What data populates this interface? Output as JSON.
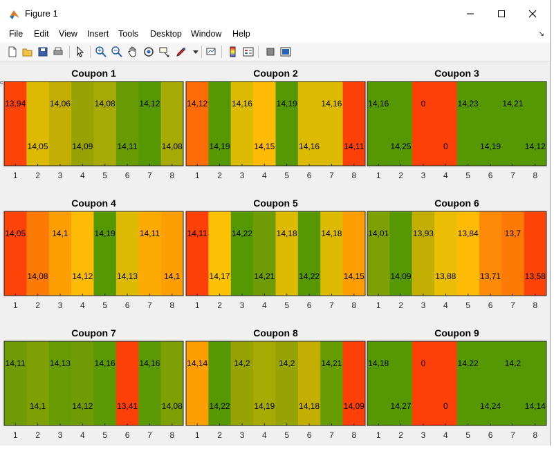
{
  "window": {
    "title": "Figure 1"
  },
  "menu": [
    "File",
    "Edit",
    "View",
    "Insert",
    "Tools",
    "Desktop",
    "Window",
    "Help"
  ],
  "toolbar": [
    "new-figure",
    "open-file",
    "save",
    "print",
    "edit-plot",
    "zoom-in",
    "zoom-out",
    "pan",
    "rotate-3d",
    "data-cursor",
    "brush",
    "link-plot",
    "colorbar",
    "legend",
    "hide-plot-tools",
    "show-plot-tools"
  ],
  "chart_data": [
    {
      "type": "heatmap",
      "title": "Coupon 1",
      "x": [
        1,
        2,
        3,
        4,
        5,
        6,
        7,
        8
      ],
      "values": [
        "13,94",
        "14,05",
        "14,06",
        "14,09",
        "14,08",
        "14,11",
        "14,12",
        "14,08"
      ],
      "colors": [
        "#fd4408",
        "#ddbb04",
        "#c3ae04",
        "#97a304",
        "#a7aa04",
        "#679b04",
        "#569804",
        "#a7aa04"
      ]
    },
    {
      "type": "heatmap",
      "title": "Coupon 2",
      "x": [
        1,
        2,
        3,
        4,
        5,
        6,
        7,
        8
      ],
      "values": [
        "14,12",
        "14,19",
        "14,16",
        "14,15",
        "14,19",
        "14,16",
        "14,16",
        "14,11"
      ],
      "colors": [
        "#fd6c06",
        "#569804",
        "#ddbb04",
        "#fdbb05",
        "#569804",
        "#ddbb04",
        "#ddbb04",
        "#fd3f08"
      ]
    },
    {
      "type": "heatmap",
      "title": "Coupon 3",
      "x": [
        1,
        2,
        3,
        4,
        5,
        6,
        7,
        8
      ],
      "values": [
        "14,16",
        "14,25",
        "0",
        "0",
        "14,23",
        "14,19",
        "14,21",
        "14,12"
      ],
      "colors": [
        "#569804",
        "#569804",
        "#fd3f08",
        "#fd3f08",
        "#569804",
        "#569804",
        "#569804",
        "#569804"
      ]
    },
    {
      "type": "heatmap",
      "title": "Coupon 4",
      "x": [
        1,
        2,
        3,
        4,
        5,
        6,
        7,
        8
      ],
      "values": [
        "14,05",
        "14,08",
        "14,1",
        "14,12",
        "14,19",
        "14,13",
        "14,11",
        "14,1"
      ],
      "colors": [
        "#fd4408",
        "#fd7a06",
        "#fd9e05",
        "#fdbb05",
        "#569804",
        "#ddbb04",
        "#fdaa05",
        "#fd9e05"
      ]
    },
    {
      "type": "heatmap",
      "title": "Coupon 5",
      "x": [
        1,
        2,
        3,
        4,
        5,
        6,
        7,
        8
      ],
      "values": [
        "14,11",
        "14,17",
        "14,22",
        "14,21",
        "14,18",
        "14,22",
        "14,18",
        "14,15"
      ],
      "colors": [
        "#fd3f08",
        "#fdc205",
        "#569804",
        "#6f9c04",
        "#ddbb04",
        "#569804",
        "#ddbb04",
        "#fd9e05"
      ]
    },
    {
      "type": "heatmap",
      "title": "Coupon 6",
      "x": [
        1,
        2,
        3,
        4,
        5,
        6,
        7,
        8
      ],
      "values": [
        "14,01",
        "14,09",
        "13,93",
        "13,88",
        "13,84",
        "13,71",
        "13,7",
        "13,58"
      ],
      "colors": [
        "#7ea004",
        "#569804",
        "#c3ae04",
        "#ebbd04",
        "#fdbb05",
        "#fd8a06",
        "#fd7a06",
        "#fd4408"
      ]
    },
    {
      "type": "heatmap",
      "title": "Coupon 7",
      "x": [
        1,
        2,
        3,
        4,
        5,
        6,
        7,
        8
      ],
      "values": [
        "14,11",
        "14,1",
        "14,13",
        "14,12",
        "14,16",
        "13,41",
        "14,16",
        "14,08"
      ],
      "colors": [
        "#6f9c04",
        "#7ea004",
        "#679b04",
        "#6f9c04",
        "#5a9904",
        "#fd3f08",
        "#5a9904",
        "#7ea004"
      ]
    },
    {
      "type": "heatmap",
      "title": "Coupon 8",
      "x": [
        1,
        2,
        3,
        4,
        5,
        6,
        7,
        8
      ],
      "values": [
        "14,14",
        "14,22",
        "14,2",
        "14,19",
        "14,2",
        "14,18",
        "14,21",
        "14,09"
      ],
      "colors": [
        "#fd9e05",
        "#569804",
        "#97a304",
        "#a7aa04",
        "#97a304",
        "#c3ae04",
        "#679b04",
        "#fd3f08"
      ]
    },
    {
      "type": "heatmap",
      "title": "Coupon 9",
      "x": [
        1,
        2,
        3,
        4,
        5,
        6,
        7,
        8
      ],
      "values": [
        "14,18",
        "14,27",
        "0",
        "0",
        "14,22",
        "14,24",
        "14,2",
        "14,14"
      ],
      "colors": [
        "#569804",
        "#569804",
        "#fd3f08",
        "#fd3f08",
        "#569804",
        "#569804",
        "#569804",
        "#569804"
      ]
    }
  ]
}
